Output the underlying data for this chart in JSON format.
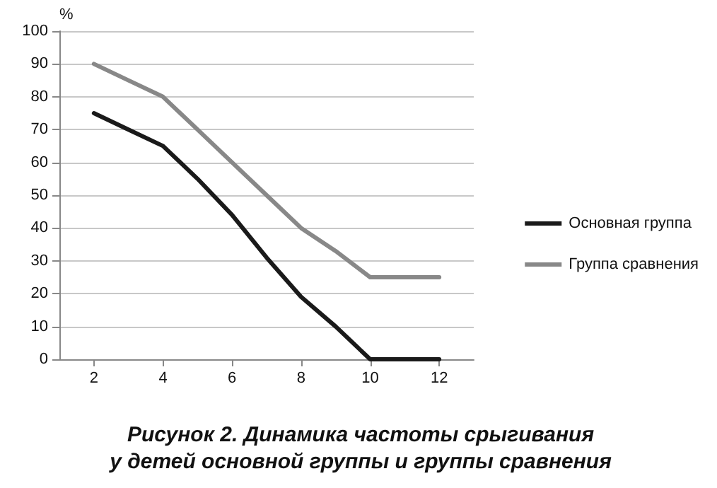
{
  "chart_data": {
    "type": "line",
    "title": "Рисунок 2. Динамика частоты срыгивания\nу детей основной группы и группы сравнения",
    "ylabel": "%",
    "x": [
      2,
      3,
      4,
      5,
      6,
      7,
      8,
      9,
      10,
      11,
      12
    ],
    "series": [
      {
        "name": "Основная группа",
        "color": "#1a1a1a",
        "values": [
          75,
          70,
          65,
          55,
          44,
          31,
          19,
          10,
          0,
          0,
          0
        ]
      },
      {
        "name": "Группа сравнения",
        "color": "#888888",
        "values": [
          90,
          85,
          80,
          70,
          60,
          50,
          40,
          33,
          25,
          25,
          25
        ]
      }
    ],
    "xlim": [
      1,
      13
    ],
    "xticks": [
      2,
      4,
      6,
      8,
      10,
      12
    ],
    "ylim": [
      0,
      100
    ],
    "yticks": [
      0,
      10,
      20,
      30,
      40,
      50,
      60,
      70,
      80,
      90,
      100
    ],
    "grid": "y",
    "legend": "right",
    "marker": "none",
    "line_style": "solid"
  }
}
